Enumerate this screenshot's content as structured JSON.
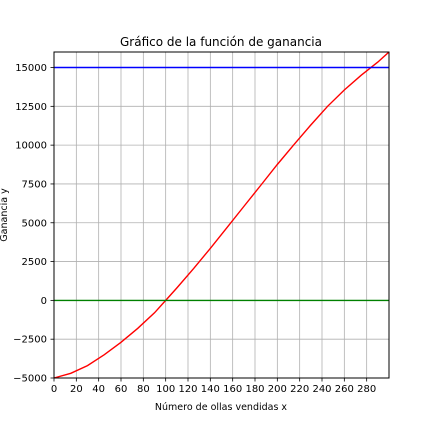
{
  "chart_data": {
    "type": "line",
    "title": "Gráfico de la función de ganancia",
    "xlabel": "Número de ollas vendidas x",
    "ylabel": "Ganancia y",
    "xlim": [
      0,
      300
    ],
    "ylim": [
      -5000,
      16000
    ],
    "grid": true,
    "x_ticks": [
      0,
      20,
      40,
      60,
      80,
      100,
      120,
      140,
      160,
      180,
      200,
      220,
      240,
      260,
      280
    ],
    "y_ticks": [
      -5000,
      -2500,
      0,
      2500,
      5000,
      7500,
      10000,
      12500,
      15000
    ],
    "x_tick_labels": [
      "0",
      "20",
      "40",
      "60",
      "80",
      "100",
      "120",
      "140",
      "160",
      "180",
      "200",
      "220",
      "240",
      "260",
      "280"
    ],
    "y_tick_labels": [
      "−5000",
      "−2500",
      "0",
      "2500",
      "5000",
      "7500",
      "10000",
      "12500",
      "15000"
    ],
    "series": [
      {
        "color": "#ff0000",
        "x": [
          0,
          15,
          30,
          45,
          60,
          75,
          90,
          100,
          110,
          125,
          140,
          155,
          170,
          185,
          200,
          215,
          230,
          245,
          260,
          275,
          290,
          300
        ],
        "y": [
          -5000,
          -4700,
          -4200,
          -3500,
          -2700,
          -1800,
          -800,
          0,
          800,
          2050,
          3350,
          4700,
          6050,
          7400,
          8750,
          10050,
          11300,
          12500,
          13550,
          14500,
          15350,
          16000
        ]
      },
      {
        "color": "#0000ff",
        "x": [
          0,
          300
        ],
        "y": [
          15000,
          15000
        ]
      },
      {
        "color": "#008000",
        "x": [
          0,
          300
        ],
        "y": [
          0,
          0
        ]
      }
    ]
  }
}
